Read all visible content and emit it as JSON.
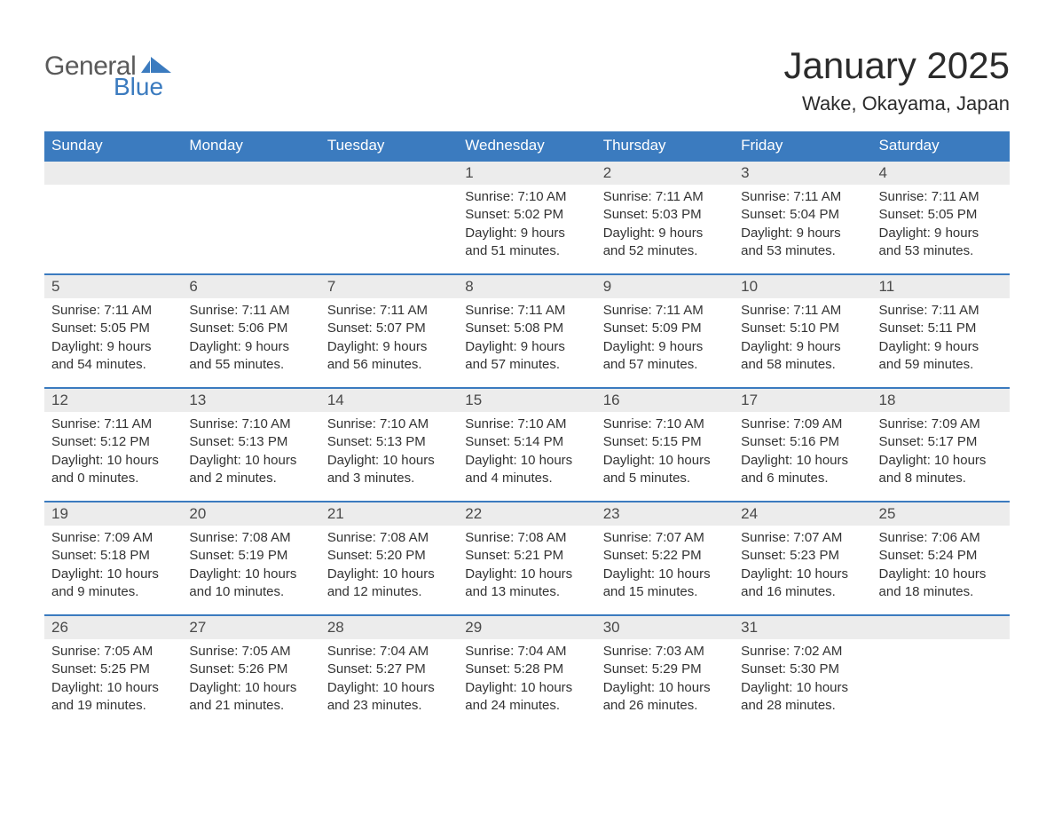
{
  "brand": {
    "text1": "General",
    "text2": "Blue",
    "flag_color": "#3b7bbf",
    "text1_color": "#5a5a5a"
  },
  "title": "January 2025",
  "location": "Wake, Okayama, Japan",
  "colors": {
    "header_bg": "#3b7bbf",
    "header_fg": "#ffffff",
    "daynum_bg": "#ececec",
    "text": "#333333",
    "rule": "#3b7bbf",
    "page_bg": "#ffffff"
  },
  "fonts": {
    "title_size_pt": 32,
    "location_size_pt": 17,
    "header_size_pt": 13,
    "body_size_pt": 11
  },
  "weekdays": [
    "Sunday",
    "Monday",
    "Tuesday",
    "Wednesday",
    "Thursday",
    "Friday",
    "Saturday"
  ],
  "first_weekday_index": 3,
  "days": [
    {
      "n": 1,
      "sunrise": "7:10 AM",
      "sunset": "5:02 PM",
      "dl_h": 9,
      "dl_m": 51
    },
    {
      "n": 2,
      "sunrise": "7:11 AM",
      "sunset": "5:03 PM",
      "dl_h": 9,
      "dl_m": 52
    },
    {
      "n": 3,
      "sunrise": "7:11 AM",
      "sunset": "5:04 PM",
      "dl_h": 9,
      "dl_m": 53
    },
    {
      "n": 4,
      "sunrise": "7:11 AM",
      "sunset": "5:05 PM",
      "dl_h": 9,
      "dl_m": 53
    },
    {
      "n": 5,
      "sunrise": "7:11 AM",
      "sunset": "5:05 PM",
      "dl_h": 9,
      "dl_m": 54
    },
    {
      "n": 6,
      "sunrise": "7:11 AM",
      "sunset": "5:06 PM",
      "dl_h": 9,
      "dl_m": 55
    },
    {
      "n": 7,
      "sunrise": "7:11 AM",
      "sunset": "5:07 PM",
      "dl_h": 9,
      "dl_m": 56
    },
    {
      "n": 8,
      "sunrise": "7:11 AM",
      "sunset": "5:08 PM",
      "dl_h": 9,
      "dl_m": 57
    },
    {
      "n": 9,
      "sunrise": "7:11 AM",
      "sunset": "5:09 PM",
      "dl_h": 9,
      "dl_m": 57
    },
    {
      "n": 10,
      "sunrise": "7:11 AM",
      "sunset": "5:10 PM",
      "dl_h": 9,
      "dl_m": 58
    },
    {
      "n": 11,
      "sunrise": "7:11 AM",
      "sunset": "5:11 PM",
      "dl_h": 9,
      "dl_m": 59
    },
    {
      "n": 12,
      "sunrise": "7:11 AM",
      "sunset": "5:12 PM",
      "dl_h": 10,
      "dl_m": 0
    },
    {
      "n": 13,
      "sunrise": "7:10 AM",
      "sunset": "5:13 PM",
      "dl_h": 10,
      "dl_m": 2
    },
    {
      "n": 14,
      "sunrise": "7:10 AM",
      "sunset": "5:13 PM",
      "dl_h": 10,
      "dl_m": 3
    },
    {
      "n": 15,
      "sunrise": "7:10 AM",
      "sunset": "5:14 PM",
      "dl_h": 10,
      "dl_m": 4
    },
    {
      "n": 16,
      "sunrise": "7:10 AM",
      "sunset": "5:15 PM",
      "dl_h": 10,
      "dl_m": 5
    },
    {
      "n": 17,
      "sunrise": "7:09 AM",
      "sunset": "5:16 PM",
      "dl_h": 10,
      "dl_m": 6
    },
    {
      "n": 18,
      "sunrise": "7:09 AM",
      "sunset": "5:17 PM",
      "dl_h": 10,
      "dl_m": 8
    },
    {
      "n": 19,
      "sunrise": "7:09 AM",
      "sunset": "5:18 PM",
      "dl_h": 10,
      "dl_m": 9
    },
    {
      "n": 20,
      "sunrise": "7:08 AM",
      "sunset": "5:19 PM",
      "dl_h": 10,
      "dl_m": 10
    },
    {
      "n": 21,
      "sunrise": "7:08 AM",
      "sunset": "5:20 PM",
      "dl_h": 10,
      "dl_m": 12
    },
    {
      "n": 22,
      "sunrise": "7:08 AM",
      "sunset": "5:21 PM",
      "dl_h": 10,
      "dl_m": 13
    },
    {
      "n": 23,
      "sunrise": "7:07 AM",
      "sunset": "5:22 PM",
      "dl_h": 10,
      "dl_m": 15
    },
    {
      "n": 24,
      "sunrise": "7:07 AM",
      "sunset": "5:23 PM",
      "dl_h": 10,
      "dl_m": 16
    },
    {
      "n": 25,
      "sunrise": "7:06 AM",
      "sunset": "5:24 PM",
      "dl_h": 10,
      "dl_m": 18
    },
    {
      "n": 26,
      "sunrise": "7:05 AM",
      "sunset": "5:25 PM",
      "dl_h": 10,
      "dl_m": 19
    },
    {
      "n": 27,
      "sunrise": "7:05 AM",
      "sunset": "5:26 PM",
      "dl_h": 10,
      "dl_m": 21
    },
    {
      "n": 28,
      "sunrise": "7:04 AM",
      "sunset": "5:27 PM",
      "dl_h": 10,
      "dl_m": 23
    },
    {
      "n": 29,
      "sunrise": "7:04 AM",
      "sunset": "5:28 PM",
      "dl_h": 10,
      "dl_m": 24
    },
    {
      "n": 30,
      "sunrise": "7:03 AM",
      "sunset": "5:29 PM",
      "dl_h": 10,
      "dl_m": 26
    },
    {
      "n": 31,
      "sunrise": "7:02 AM",
      "sunset": "5:30 PM",
      "dl_h": 10,
      "dl_m": 28
    }
  ],
  "labels": {
    "sunrise": "Sunrise:",
    "sunset": "Sunset:",
    "daylight": "Daylight:",
    "hours": "hours",
    "and": "and",
    "minutes": "minutes."
  }
}
